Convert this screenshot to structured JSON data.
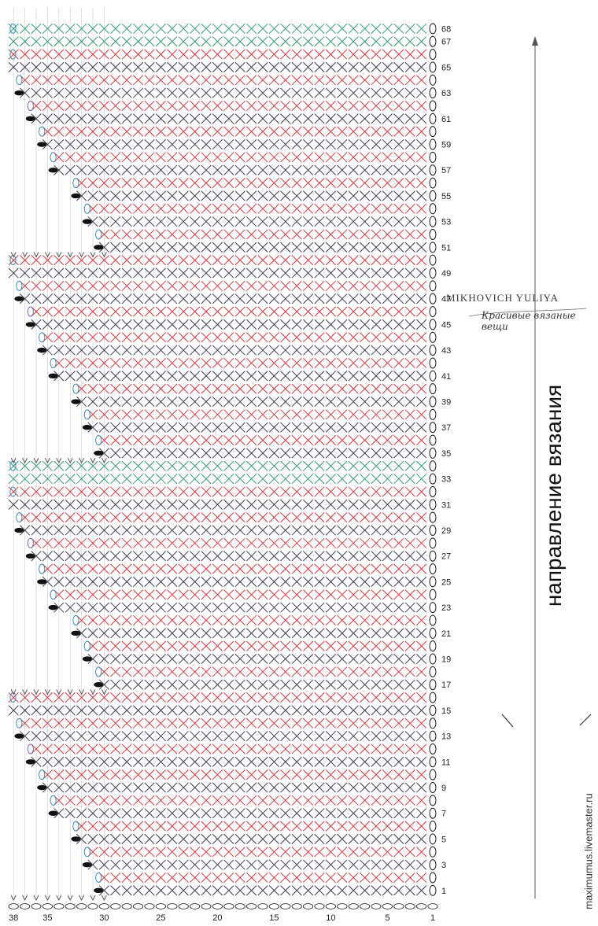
{
  "chart": {
    "stitch_columns": 38,
    "rows": [
      {
        "row": 1,
        "printed_label": "1",
        "color": "#3a3f4b",
        "turn_col": 9
      },
      {
        "row": 2,
        "printed_label": "",
        "color": "#d23a41",
        "turn_col": 9
      },
      {
        "row": 3,
        "printed_label": "3",
        "color": "#3a3f4b",
        "turn_col": 8
      },
      {
        "row": 4,
        "printed_label": "",
        "color": "#d23a41",
        "turn_col": 8
      },
      {
        "row": 5,
        "printed_label": "5",
        "color": "#3a3f4b",
        "turn_col": 7
      },
      {
        "row": 6,
        "printed_label": "",
        "color": "#d23a41",
        "turn_col": 7
      },
      {
        "row": 7,
        "printed_label": "7",
        "color": "#3a3f4b",
        "turn_col": 5
      },
      {
        "row": 8,
        "printed_label": "",
        "color": "#d23a41",
        "turn_col": 5
      },
      {
        "row": 9,
        "printed_label": "9",
        "color": "#3a3f4b",
        "turn_col": 4
      },
      {
        "row": 10,
        "printed_label": "",
        "color": "#d23a41",
        "turn_col": 4
      },
      {
        "row": 11,
        "printed_label": "11",
        "color": "#3a3f4b",
        "turn_col": 3
      },
      {
        "row": 12,
        "printed_label": "",
        "color": "#d23a41",
        "turn_col": 3
      },
      {
        "row": 13,
        "printed_label": "13",
        "color": "#3a3f4b",
        "turn_col": 2
      },
      {
        "row": 14,
        "printed_label": "",
        "color": "#d23a41",
        "turn_col": 2
      },
      {
        "row": 15,
        "printed_label": "15",
        "color": "#3a3f4b",
        "turn_col": 1
      },
      {
        "row": 16,
        "printed_label": "",
        "color": "#d23a41",
        "turn_col": 1
      },
      {
        "row": 17,
        "printed_label": "17",
        "color": "#3a3f4b",
        "turn_col": 9
      },
      {
        "row": 18,
        "printed_label": "",
        "color": "#d23a41",
        "turn_col": 9
      },
      {
        "row": 19,
        "printed_label": "19",
        "color": "#3a3f4b",
        "turn_col": 8
      },
      {
        "row": 20,
        "printed_label": "",
        "color": "#d23a41",
        "turn_col": 8
      },
      {
        "row": 21,
        "printed_label": "21",
        "color": "#3a3f4b",
        "turn_col": 7
      },
      {
        "row": 22,
        "printed_label": "",
        "color": "#d23a41",
        "turn_col": 7
      },
      {
        "row": 23,
        "printed_label": "23",
        "color": "#3a3f4b",
        "turn_col": 5
      },
      {
        "row": 24,
        "printed_label": "",
        "color": "#d23a41",
        "turn_col": 5
      },
      {
        "row": 25,
        "printed_label": "25",
        "color": "#3a3f4b",
        "turn_col": 4
      },
      {
        "row": 26,
        "printed_label": "",
        "color": "#d23a41",
        "turn_col": 4
      },
      {
        "row": 27,
        "printed_label": "27",
        "color": "#3a3f4b",
        "turn_col": 3
      },
      {
        "row": 28,
        "printed_label": "",
        "color": "#d23a41",
        "turn_col": 3
      },
      {
        "row": 29,
        "printed_label": "29",
        "color": "#3a3f4b",
        "turn_col": 2
      },
      {
        "row": 30,
        "printed_label": "",
        "color": "#d23a41",
        "turn_col": 2
      },
      {
        "row": 31,
        "printed_label": "31",
        "color": "#3a3f4b",
        "turn_col": 1
      },
      {
        "row": 32,
        "printed_label": "",
        "color": "#d23a41",
        "turn_col": 1
      },
      {
        "row": 33,
        "printed_label": "33",
        "color": "#2e9a6e",
        "turn_col": 1
      },
      {
        "row": 34,
        "printed_label": "",
        "color": "#2e9a6e",
        "turn_col": 1
      },
      {
        "row": 35,
        "printed_label": "35",
        "color": "#3a3f4b",
        "turn_col": 9
      },
      {
        "row": 36,
        "printed_label": "",
        "color": "#d23a41",
        "turn_col": 9
      },
      {
        "row": 37,
        "printed_label": "37",
        "color": "#3a3f4b",
        "turn_col": 8
      },
      {
        "row": 38,
        "printed_label": "",
        "color": "#d23a41",
        "turn_col": 8
      },
      {
        "row": 39,
        "printed_label": "39",
        "color": "#3a3f4b",
        "turn_col": 7
      },
      {
        "row": 40,
        "printed_label": "",
        "color": "#d23a41",
        "turn_col": 7
      },
      {
        "row": 41,
        "printed_label": "41",
        "color": "#3a3f4b",
        "turn_col": 5
      },
      {
        "row": 42,
        "printed_label": "",
        "color": "#d23a41",
        "turn_col": 5
      },
      {
        "row": 43,
        "printed_label": "43",
        "color": "#3a3f4b",
        "turn_col": 4
      },
      {
        "row": 44,
        "printed_label": "",
        "color": "#d23a41",
        "turn_col": 4
      },
      {
        "row": 45,
        "printed_label": "45",
        "color": "#3a3f4b",
        "turn_col": 3
      },
      {
        "row": 46,
        "printed_label": "",
        "color": "#d23a41",
        "turn_col": 3
      },
      {
        "row": 47,
        "printed_label": "47",
        "color": "#3a3f4b",
        "turn_col": 2
      },
      {
        "row": 48,
        "printed_label": "",
        "color": "#d23a41",
        "turn_col": 2
      },
      {
        "row": 49,
        "printed_label": "49",
        "color": "#3a3f4b",
        "turn_col": 1
      },
      {
        "row": 50,
        "printed_label": "",
        "color": "#d23a41",
        "turn_col": 1
      },
      {
        "row": 51,
        "printed_label": "51",
        "color": "#3a3f4b",
        "turn_col": 9
      },
      {
        "row": 52,
        "printed_label": "",
        "color": "#d23a41",
        "turn_col": 9
      },
      {
        "row": 53,
        "printed_label": "53",
        "color": "#3a3f4b",
        "turn_col": 8
      },
      {
        "row": 54,
        "printed_label": "",
        "color": "#d23a41",
        "turn_col": 8
      },
      {
        "row": 55,
        "printed_label": "55",
        "color": "#3a3f4b",
        "turn_col": 7
      },
      {
        "row": 56,
        "printed_label": "",
        "color": "#d23a41",
        "turn_col": 7
      },
      {
        "row": 57,
        "printed_label": "57",
        "color": "#3a3f4b",
        "turn_col": 5
      },
      {
        "row": 58,
        "printed_label": "",
        "color": "#d23a41",
        "turn_col": 5
      },
      {
        "row": 59,
        "printed_label": "59",
        "color": "#3a3f4b",
        "turn_col": 4
      },
      {
        "row": 60,
        "printed_label": "",
        "color": "#d23a41",
        "turn_col": 4
      },
      {
        "row": 61,
        "printed_label": "61",
        "color": "#3a3f4b",
        "turn_col": 3
      },
      {
        "row": 62,
        "printed_label": "",
        "color": "#d23a41",
        "turn_col": 3
      },
      {
        "row": 63,
        "printed_label": "63",
        "color": "#3a3f4b",
        "turn_col": 2
      },
      {
        "row": 64,
        "printed_label": "",
        "color": "#d23a41",
        "turn_col": 2
      },
      {
        "row": 65,
        "printed_label": "65",
        "color": "#3a3f4b",
        "turn_col": 1
      },
      {
        "row": 66,
        "printed_label": "",
        "color": "#d23a41",
        "turn_col": 1
      },
      {
        "row": 67,
        "printed_label": "67",
        "color": "#2e9a6e",
        "turn_col": 1
      },
      {
        "row": 68,
        "printed_label": "68",
        "color": "#2e9a6e",
        "turn_col": 1
      }
    ],
    "column_labels": [
      "38",
      "35",
      "30",
      "25",
      "20",
      "15",
      "10",
      "5",
      "1"
    ],
    "column_label_positions": [
      38,
      35,
      30,
      25,
      20,
      15,
      10,
      5,
      1
    ],
    "colors": {
      "dark_stitch": "#3a3f4b",
      "red_stitch": "#d23a41",
      "green_stitch": "#2e9a6e",
      "chain_loop": "#1a1a1a",
      "turn_loop": "#3a8fb0",
      "turn_loop_alt": "#7a6aa8",
      "marker": "#111111",
      "grid": "#cfcfcf"
    }
  },
  "watermark": {
    "name": "MIKHOVICH YULIYA",
    "tagline": "Красивые вязаные вещи"
  },
  "direction": {
    "label": "направление вязания"
  },
  "site": {
    "url": "maximumus.livemaster.ru"
  }
}
